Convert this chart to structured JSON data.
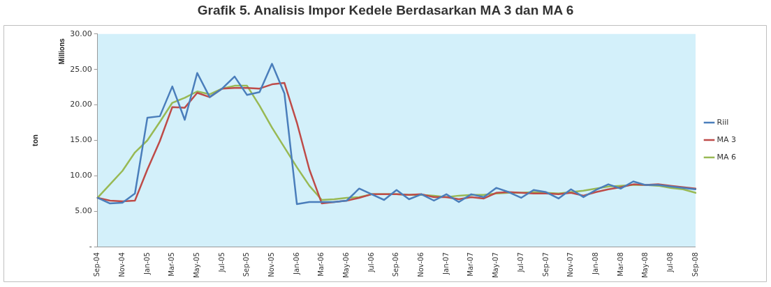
{
  "chart_data": {
    "type": "line",
    "title": "Grafik 5. Analisis Impor Kedele Berdasarkan MA 3 dan MA 6",
    "ylabel": "ton",
    "annotations": [
      "Millions"
    ],
    "categories": [
      "Sep-04",
      null,
      "Nov-04",
      null,
      "Jan-05",
      null,
      "Mar-05",
      null,
      "May-05",
      null,
      "Jul-05",
      null,
      "Sep-05",
      null,
      "Nov-05",
      null,
      "Jan-06",
      null,
      "Mar-06",
      null,
      "May-06",
      null,
      "Jul-06",
      null,
      "Sep-06",
      null,
      "Nov-06",
      null,
      "Jan-07",
      null,
      "Mar-07",
      null,
      "May-07",
      null,
      "Jul-07",
      null,
      "Sep-07",
      null,
      "Nov-07",
      null,
      "Jan-08",
      null,
      "Mar-08",
      null,
      "May-08",
      null,
      "Jul-08",
      null,
      "Sep-08"
    ],
    "series": [
      {
        "name": "Riil",
        "color": "#4a7ebb",
        "values": [
          6.9,
          6.1,
          6.2,
          7.5,
          18.2,
          18.4,
          22.6,
          17.9,
          24.5,
          21.1,
          22.3,
          24.0,
          21.4,
          21.8,
          25.8,
          21.6,
          6.0,
          6.3,
          6.3,
          6.3,
          6.5,
          8.2,
          7.4,
          6.6,
          8.0,
          6.7,
          7.4,
          6.5,
          7.4,
          6.3,
          7.4,
          7.0,
          8.3,
          7.7,
          6.9,
          8.0,
          7.7,
          6.8,
          8.1,
          7.0,
          8.0,
          8.8,
          8.2,
          9.2,
          8.7,
          8.7,
          8.5,
          8.3,
          8.1
        ]
      },
      {
        "name": "MA 3",
        "color": "#be4b48",
        "values": [
          6.9,
          6.5,
          6.4,
          6.5,
          10.9,
          14.9,
          19.7,
          19.6,
          21.7,
          21.1,
          22.3,
          22.4,
          22.4,
          22.3,
          22.9,
          23.1,
          17.5,
          10.9,
          6.1,
          6.3,
          6.5,
          6.9,
          7.4,
          7.4,
          7.4,
          7.3,
          7.4,
          7.0,
          7.0,
          6.7,
          7.0,
          6.8,
          7.6,
          7.7,
          7.6,
          7.5,
          7.5,
          7.4,
          7.6,
          7.2,
          7.7,
          8.1,
          8.4,
          8.8,
          8.7,
          8.8,
          8.6,
          8.4,
          8.2
        ]
      },
      {
        "name": "MA 6",
        "color": "#98b954",
        "values": [
          6.9,
          8.8,
          10.7,
          13.3,
          15.0,
          17.6,
          20.3,
          21.0,
          21.9,
          21.5,
          22.3,
          22.7,
          22.7,
          19.9,
          16.8,
          14.0,
          11.2,
          8.6,
          6.6,
          6.7,
          6.9,
          7.0,
          7.4,
          7.4,
          7.4,
          7.3,
          7.3,
          7.2,
          7.0,
          7.2,
          7.3,
          7.3,
          7.5,
          7.6,
          7.6,
          7.7,
          7.6,
          7.5,
          7.7,
          7.9,
          8.2,
          8.5,
          8.6,
          8.7,
          8.7,
          8.6,
          8.3,
          8.1,
          7.6
        ]
      }
    ],
    "ylim": [
      0,
      30
    ],
    "yticks": [
      {
        "value": 0,
        "label": "-"
      },
      {
        "value": 5,
        "label": "5.00"
      },
      {
        "value": 10,
        "label": "10.00"
      },
      {
        "value": 15,
        "label": "15.00"
      },
      {
        "value": 20,
        "label": "20.00"
      },
      {
        "value": 25,
        "label": "25.00"
      },
      {
        "value": 30,
        "label": "30.00"
      }
    ],
    "grid": false,
    "legend": "right",
    "marker": "none",
    "line_style": "solid"
  }
}
